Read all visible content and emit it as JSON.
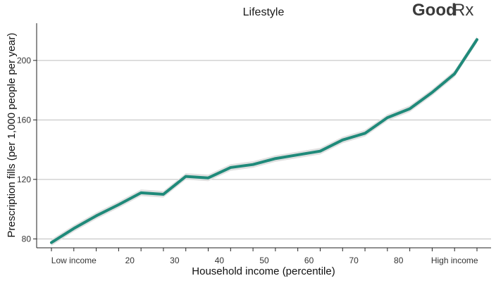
{
  "chart_data": {
    "type": "line",
    "title": "Lifestyle",
    "xlabel": "Household income (percentile)",
    "ylabel": "Prescription fills (per 1,000 people per year)",
    "x_tick_labels": [
      "Low income",
      "20",
      "30",
      "40",
      "50",
      "60",
      "70",
      "80",
      "High income"
    ],
    "y_ticks": [
      80,
      120,
      160,
      200
    ],
    "ylim": [
      74,
      225
    ],
    "grid": "horizontal",
    "series": [
      {
        "values": [
          77.5,
          87,
          95.5,
          103,
          111,
          110,
          122,
          121,
          128,
          130,
          134,
          136.5,
          139,
          146.5,
          151,
          161.5,
          167.5,
          178.5,
          191,
          214
        ],
        "color": "#1f8a7a",
        "band_color": "#e0e0e0"
      }
    ]
  },
  "logo": {
    "part1": "Good",
    "part2": "Rx"
  }
}
